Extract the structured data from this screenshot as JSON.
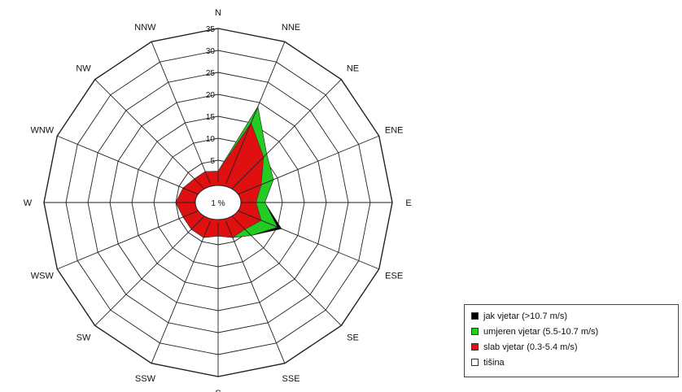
{
  "chart_data": {
    "type": "radar",
    "directions": [
      "N",
      "NNE",
      "NE",
      "ENE",
      "E",
      "ESE",
      "SE",
      "SSE",
      "S",
      "SSW",
      "SW",
      "WSW",
      "W",
      "WNW",
      "NW",
      "NNW"
    ],
    "radial_ticks": [
      "5",
      "10",
      "15",
      "20",
      "25",
      "30",
      "35"
    ],
    "rmax": 35,
    "calm_label": "1 %",
    "series": [
      {
        "name": "jak  vjetar (>10.7 m/s)",
        "color": "#000000",
        "values": [
          2.5,
          19,
          11,
          9,
          6,
          11,
          6,
          4,
          3,
          4,
          4,
          4,
          5,
          4,
          3,
          3
        ]
      },
      {
        "name": "umjeren vjetar (5.5-10.7 m/s)",
        "color": "#22cc22",
        "values": [
          2.5,
          19,
          11,
          9,
          6,
          10,
          6,
          4,
          3,
          4,
          4,
          4,
          5,
          4,
          3,
          3
        ]
      },
      {
        "name": "slab vjetar (0.3-5.4 m/s)",
        "color": "#e01010",
        "values": [
          2.5,
          15,
          10,
          6,
          4,
          6,
          4,
          4,
          3,
          4,
          4,
          4,
          5,
          4,
          3,
          3
        ]
      }
    ],
    "legend": [
      {
        "label": "jak  vjetar (>10.7 m/s)",
        "color": "#000000"
      },
      {
        "label": "umjeren vjetar (5.5-10.7 m/s)",
        "color": "#22cc22"
      },
      {
        "label": "slab vjetar (0.3-5.4 m/s)",
        "color": "#e01010"
      },
      {
        "label": "tišina",
        "color": "#ffffff"
      }
    ],
    "legend_position": "bottom-right"
  }
}
